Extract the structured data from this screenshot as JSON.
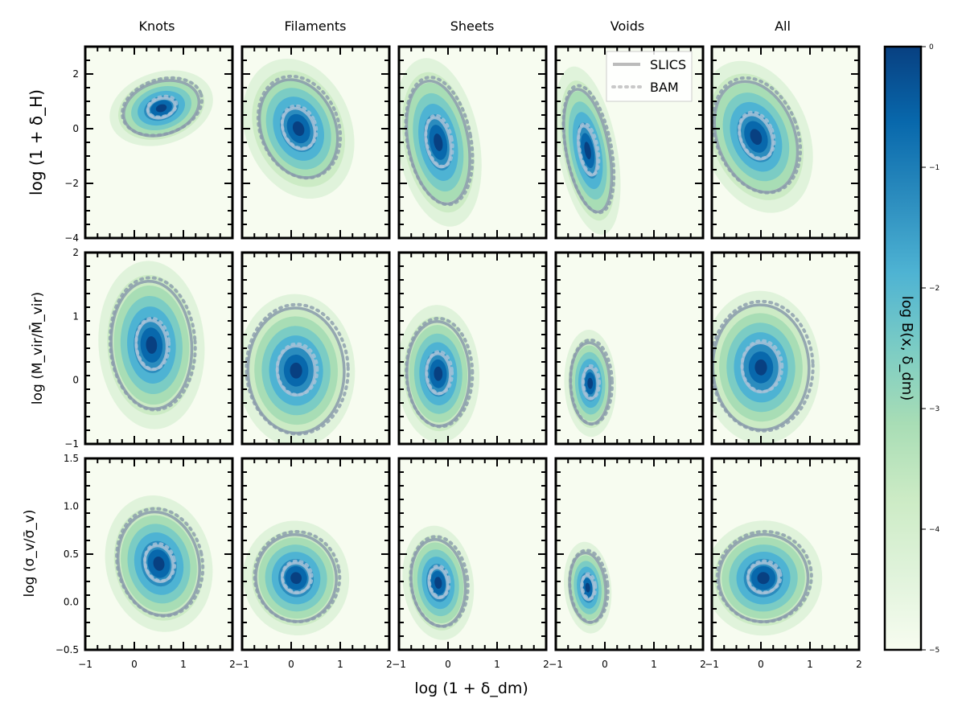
{
  "chart_data": {
    "type": "heatmap",
    "columns": [
      "Knots",
      "Filaments",
      "Sheets",
      "Voids",
      "All"
    ],
    "rows": [
      {
        "ylabel": "log (1 + δ_H)",
        "ylim": [
          -4,
          3
        ],
        "yticks": [
          "2",
          "0",
          "−2",
          "−4"
        ],
        "yticks_values": [
          2,
          0,
          -2,
          -4
        ],
        "panels": [
          {
            "center": [
              0.55,
              0.75
            ],
            "spread": [
              0.45,
              0.55
            ],
            "tilt": 0.5,
            "contours": [
              0.45,
              1.25
            ]
          },
          {
            "center": [
              0.15,
              0.0
            ],
            "spread": [
              0.45,
              1.1
            ],
            "tilt": 0.6,
            "contours": [
              0.5,
              1.2
            ]
          },
          {
            "center": [
              -0.2,
              -0.5
            ],
            "spread": [
              0.35,
              1.3
            ],
            "tilt": 0.3,
            "contours": [
              0.5,
              1.25
            ]
          },
          {
            "center": [
              -0.35,
              -0.8
            ],
            "spread": [
              0.25,
              1.3
            ],
            "tilt": 0.3,
            "contours": [
              0.5,
              1.25
            ]
          },
          {
            "center": [
              -0.1,
              -0.3
            ],
            "spread": [
              0.45,
              1.2
            ],
            "tilt": 0.6,
            "contours": [
              0.5,
              1.25
            ]
          }
        ]
      },
      {
        "ylabel": "log (M_vir/M̄_vir)",
        "ylim": [
          -1,
          2
        ],
        "yticks": [
          "2",
          "1",
          "0",
          "−1"
        ],
        "yticks_values": [
          2,
          1,
          0,
          -1
        ],
        "panels": [
          {
            "center": [
              0.35,
              0.55
            ],
            "spread": [
              0.45,
              0.55
            ],
            "tilt": 0.1,
            "contours": [
              0.5,
              1.3
            ]
          },
          {
            "center": [
              0.1,
              0.15
            ],
            "spread": [
              0.5,
              0.5
            ],
            "tilt": 0.05,
            "contours": [
              0.55,
              1.4
            ]
          },
          {
            "center": [
              -0.2,
              0.1
            ],
            "spread": [
              0.35,
              0.45
            ],
            "tilt": 0.05,
            "contours": [
              0.5,
              1.3
            ]
          },
          {
            "center": [
              -0.3,
              -0.05
            ],
            "spread": [
              0.22,
              0.35
            ],
            "tilt": 0.05,
            "contours": [
              0.5,
              1.3
            ]
          },
          {
            "center": [
              0.0,
              0.2
            ],
            "spread": [
              0.5,
              0.5
            ],
            "tilt": 0.05,
            "contours": [
              0.55,
              1.4
            ]
          }
        ]
      },
      {
        "ylabel": "log (σ_v/σ̄_v)",
        "ylim": [
          -0.5,
          1.5
        ],
        "yticks": [
          "1.5",
          "1.0",
          "0.5",
          "0.0",
          "−0.5"
        ],
        "yticks_values": [
          1.5,
          1.0,
          0.5,
          0.0,
          -0.5
        ],
        "panels": [
          {
            "center": [
              0.5,
              0.4
            ],
            "spread": [
              0.45,
              0.3
            ],
            "tilt": 0.35,
            "contours": [
              0.45,
              1.3
            ]
          },
          {
            "center": [
              0.1,
              0.25
            ],
            "spread": [
              0.45,
              0.25
            ],
            "tilt": 0.25,
            "contours": [
              0.45,
              1.3
            ]
          },
          {
            "center": [
              -0.2,
              0.2
            ],
            "spread": [
              0.3,
              0.25
            ],
            "tilt": 0.2,
            "contours": [
              0.45,
              1.3
            ]
          },
          {
            "center": [
              -0.35,
              0.15
            ],
            "spread": [
              0.2,
              0.2
            ],
            "tilt": 0.15,
            "contours": [
              0.45,
              1.3
            ]
          },
          {
            "center": [
              0.05,
              0.25
            ],
            "spread": [
              0.5,
              0.25
            ],
            "tilt": 0.3,
            "contours": [
              0.45,
              1.3
            ]
          }
        ]
      }
    ],
    "xlabel": "log (1 + δ_dm)",
    "xlim": [
      -1,
      2
    ],
    "xticks": [
      "−1",
      "0",
      "1",
      "2"
    ],
    "xticks_values": [
      -1,
      0,
      1,
      2
    ],
    "legend": {
      "placement": "top-right of Voids panel (row 1)",
      "entries": [
        {
          "name": "SLICS",
          "style": "solid"
        },
        {
          "name": "BAM",
          "style": "dotted"
        }
      ]
    },
    "colorbar": {
      "label": "log B(x, δ_dm)",
      "range": [
        -5,
        0
      ],
      "ticks": [
        "0",
        "−1",
        "−2",
        "−3",
        "−4",
        "−5"
      ],
      "ticks_values": [
        0,
        -1,
        -2,
        -3,
        -4,
        -5
      ],
      "colormap": "GnBu"
    }
  },
  "colors": {
    "cmap": [
      "#f7fcf0",
      "#e0f3db",
      "#ccebc5",
      "#a8ddb5",
      "#7bccc4",
      "#4eb3d3",
      "#2b8cbe",
      "#0868ac",
      "#084081"
    ],
    "contour_solid": "#8a9bab",
    "contour_inner": "#a9c3d8"
  }
}
